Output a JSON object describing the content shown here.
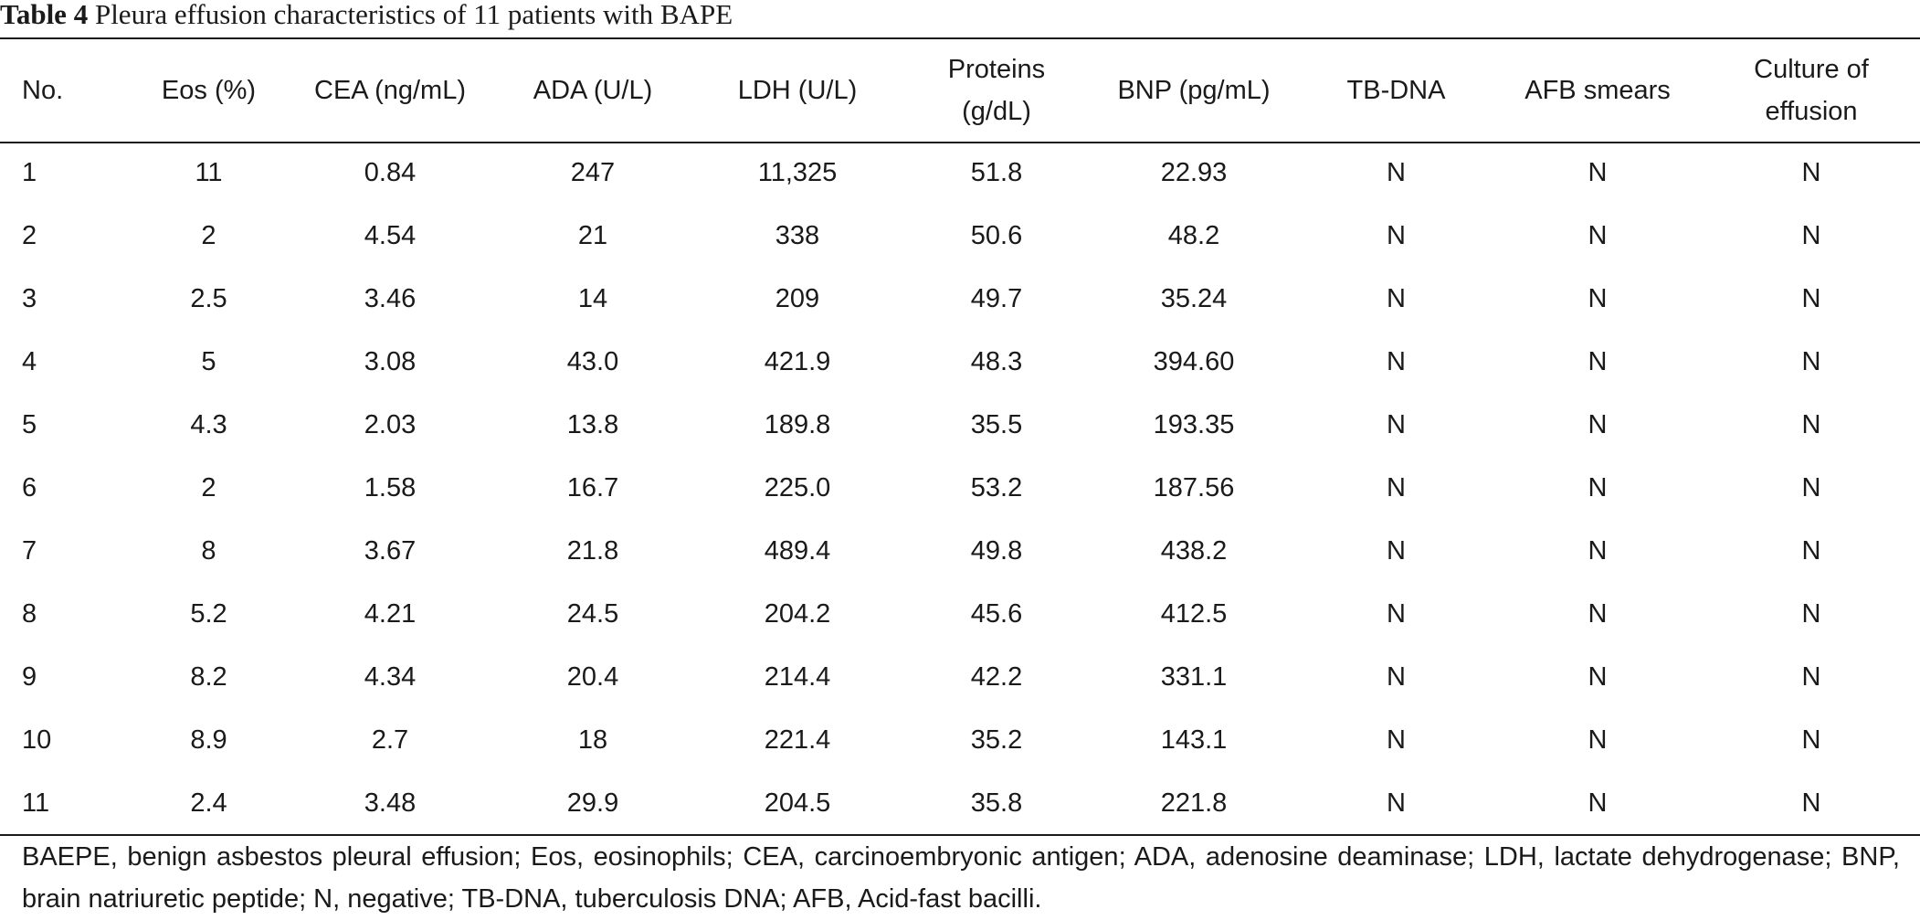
{
  "caption": {
    "label": "Table 4",
    "title": "Pleura effusion characteristics of 11 patients with BAPE"
  },
  "table": {
    "headers": [
      "No.",
      "Eos (%)",
      "CEA (ng/mL)",
      "ADA (U/L)",
      "LDH (U/L)",
      [
        "Proteins",
        "(g/dL)"
      ],
      "BNP (pg/mL)",
      "TB-DNA",
      "AFB smears",
      [
        "Culture of",
        "effusion"
      ]
    ],
    "rows": [
      [
        "1",
        "11",
        "0.84",
        "247",
        "11,325",
        "51.8",
        "22.93",
        "N",
        "N",
        "N"
      ],
      [
        "2",
        "2",
        "4.54",
        "21",
        "338",
        "50.6",
        "48.2",
        "N",
        "N",
        "N"
      ],
      [
        "3",
        "2.5",
        "3.46",
        "14",
        "209",
        "49.7",
        "35.24",
        "N",
        "N",
        "N"
      ],
      [
        "4",
        "5",
        "3.08",
        "43.0",
        "421.9",
        "48.3",
        "394.60",
        "N",
        "N",
        "N"
      ],
      [
        "5",
        "4.3",
        "2.03",
        "13.8",
        "189.8",
        "35.5",
        "193.35",
        "N",
        "N",
        "N"
      ],
      [
        "6",
        "2",
        "1.58",
        "16.7",
        "225.0",
        "53.2",
        "187.56",
        "N",
        "N",
        "N"
      ],
      [
        "7",
        "8",
        "3.67",
        "21.8",
        "489.4",
        "49.8",
        "438.2",
        "N",
        "N",
        "N"
      ],
      [
        "8",
        "5.2",
        "4.21",
        "24.5",
        "204.2",
        "45.6",
        "412.5",
        "N",
        "N",
        "N"
      ],
      [
        "9",
        "8.2",
        "4.34",
        "20.4",
        "214.4",
        "42.2",
        "331.1",
        "N",
        "N",
        "N"
      ],
      [
        "10",
        "8.9",
        "2.7",
        "18",
        "221.4",
        "35.2",
        "143.1",
        "N",
        "N",
        "N"
      ],
      [
        "11",
        "2.4",
        "3.48",
        "29.9",
        "204.5",
        "35.8",
        "221.8",
        "N",
        "N",
        "N"
      ]
    ]
  },
  "footnote": "BAEPE, benign asbestos pleural effusion; Eos, eosinophils; CEA, carcinoembryonic antigen; ADA, adenosine deaminase; LDH, lactate dehydrogenase; BNP, brain natriuretic peptide; N, negative; TB-DNA, tuberculosis DNA; AFB, Acid-fast bacilli."
}
